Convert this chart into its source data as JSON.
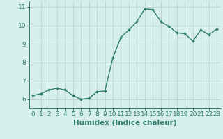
{
  "x": [
    0,
    1,
    2,
    3,
    4,
    5,
    6,
    7,
    8,
    9,
    10,
    11,
    12,
    13,
    14,
    15,
    16,
    17,
    18,
    19,
    20,
    21,
    22,
    23
  ],
  "y": [
    6.2,
    6.3,
    6.5,
    6.6,
    6.5,
    6.2,
    6.0,
    6.05,
    6.4,
    6.45,
    8.25,
    9.35,
    9.75,
    10.2,
    10.9,
    10.85,
    10.2,
    9.95,
    9.6,
    9.55,
    9.15,
    9.75,
    9.5,
    9.8
  ],
  "line_color": "#2e7d6e",
  "marker": "D",
  "marker_size": 2.0,
  "bg_color": "#d6eeec",
  "grid_color": "#c0d8d5",
  "axis_color": "#2e7d6e",
  "tick_color": "#2e7d6e",
  "xlabel": "Humidex (Indice chaleur)",
  "ylim": [
    5.5,
    11.3
  ],
  "yticks": [
    6,
    7,
    8,
    9,
    10,
    11
  ],
  "xticks": [
    0,
    1,
    2,
    3,
    4,
    5,
    6,
    7,
    8,
    9,
    10,
    11,
    12,
    13,
    14,
    15,
    16,
    17,
    18,
    19,
    20,
    21,
    22,
    23
  ],
  "xlabel_fontsize": 7.5,
  "tick_fontsize": 6.5,
  "line_width": 1.0
}
